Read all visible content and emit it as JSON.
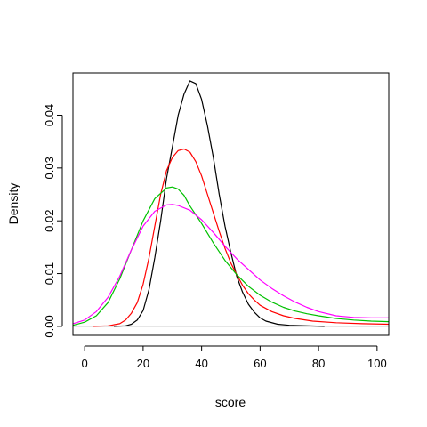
{
  "chart_data": {
    "type": "line",
    "title": "",
    "xlabel": "score",
    "ylabel": "Density",
    "xlim": [
      -4,
      104
    ],
    "ylim": [
      -0.0017,
      0.048
    ],
    "x_ticks": [
      0,
      20,
      40,
      60,
      80,
      100
    ],
    "x_tick_labels": [
      "0",
      "20",
      "40",
      "60",
      "80",
      "100"
    ],
    "y_ticks": [
      0,
      0.01,
      0.02,
      0.03,
      0.04
    ],
    "y_tick_labels": [
      "0.00",
      "0.01",
      "0.02",
      "0.03",
      "0.04"
    ],
    "baseline": 0,
    "grid": false,
    "legend": "none",
    "series": [
      {
        "color": "#000000",
        "points": [
          [
            10,
            0
          ],
          [
            14,
            0.0001
          ],
          [
            16,
            0.0004
          ],
          [
            18,
            0.0012
          ],
          [
            20,
            0.003
          ],
          [
            22,
            0.007
          ],
          [
            24,
            0.013
          ],
          [
            26,
            0.02
          ],
          [
            28,
            0.028
          ],
          [
            30,
            0.034
          ],
          [
            32,
            0.04
          ],
          [
            34,
            0.044
          ],
          [
            36,
            0.0465
          ],
          [
            38,
            0.046
          ],
          [
            40,
            0.043
          ],
          [
            42,
            0.038
          ],
          [
            44,
            0.032
          ],
          [
            46,
            0.025
          ],
          [
            48,
            0.019
          ],
          [
            50,
            0.014
          ],
          [
            52,
            0.0095
          ],
          [
            54,
            0.0065
          ],
          [
            56,
            0.0042
          ],
          [
            58,
            0.0027
          ],
          [
            60,
            0.0016
          ],
          [
            62,
            0.001
          ],
          [
            66,
            0.0004
          ],
          [
            70,
            0.0002
          ],
          [
            82,
            0
          ]
        ]
      },
      {
        "color": "#ff0000",
        "points": [
          [
            3,
            0
          ],
          [
            8,
            0.0001
          ],
          [
            12,
            0.0005
          ],
          [
            14,
            0.0012
          ],
          [
            16,
            0.0025
          ],
          [
            18,
            0.0045
          ],
          [
            20,
            0.008
          ],
          [
            22,
            0.013
          ],
          [
            24,
            0.019
          ],
          [
            26,
            0.025
          ],
          [
            28,
            0.0295
          ],
          [
            30,
            0.032
          ],
          [
            32,
            0.0333
          ],
          [
            34,
            0.0336
          ],
          [
            36,
            0.033
          ],
          [
            38,
            0.0312
          ],
          [
            40,
            0.0285
          ],
          [
            42,
            0.025
          ],
          [
            44,
            0.0215
          ],
          [
            46,
            0.018
          ],
          [
            48,
            0.0148
          ],
          [
            50,
            0.012
          ],
          [
            52,
            0.0098
          ],
          [
            54,
            0.0078
          ],
          [
            56,
            0.0062
          ],
          [
            58,
            0.005
          ],
          [
            60,
            0.004
          ],
          [
            64,
            0.0028
          ],
          [
            68,
            0.002
          ],
          [
            72,
            0.0015
          ],
          [
            78,
            0.001
          ],
          [
            86,
            0.0007
          ],
          [
            95,
            0.0005
          ],
          [
            104,
            0.0004
          ]
        ]
      },
      {
        "color": "#00c000",
        "points": [
          [
            -4,
            0.0002
          ],
          [
            0,
            0.0008
          ],
          [
            4,
            0.002
          ],
          [
            8,
            0.0045
          ],
          [
            12,
            0.009
          ],
          [
            16,
            0.0145
          ],
          [
            20,
            0.02
          ],
          [
            24,
            0.0242
          ],
          [
            28,
            0.0262
          ],
          [
            30,
            0.0264
          ],
          [
            32,
            0.026
          ],
          [
            34,
            0.0248
          ],
          [
            36,
            0.0228
          ],
          [
            40,
            0.0195
          ],
          [
            44,
            0.0158
          ],
          [
            48,
            0.0125
          ],
          [
            52,
            0.0098
          ],
          [
            56,
            0.0076
          ],
          [
            60,
            0.0059
          ],
          [
            64,
            0.0046
          ],
          [
            68,
            0.0036
          ],
          [
            72,
            0.0029
          ],
          [
            76,
            0.0024
          ],
          [
            80,
            0.002
          ],
          [
            86,
            0.0015
          ],
          [
            92,
            0.0012
          ],
          [
            98,
            0.001
          ],
          [
            104,
            0.0009
          ]
        ]
      },
      {
        "color": "#ff00ff",
        "points": [
          [
            -4,
            0.0005
          ],
          [
            0,
            0.0012
          ],
          [
            4,
            0.0028
          ],
          [
            8,
            0.0055
          ],
          [
            12,
            0.0095
          ],
          [
            16,
            0.0145
          ],
          [
            20,
            0.019
          ],
          [
            24,
            0.0218
          ],
          [
            28,
            0.023
          ],
          [
            30,
            0.0231
          ],
          [
            32,
            0.0229
          ],
          [
            36,
            0.022
          ],
          [
            40,
            0.0202
          ],
          [
            44,
            0.0178
          ],
          [
            48,
            0.0152
          ],
          [
            52,
            0.0128
          ],
          [
            56,
            0.0108
          ],
          [
            60,
            0.0088
          ],
          [
            64,
            0.0072
          ],
          [
            68,
            0.0058
          ],
          [
            72,
            0.0046
          ],
          [
            76,
            0.0036
          ],
          [
            80,
            0.0028
          ],
          [
            86,
            0.002
          ],
          [
            92,
            0.0017
          ],
          [
            98,
            0.0016
          ],
          [
            104,
            0.0016
          ]
        ]
      }
    ]
  }
}
